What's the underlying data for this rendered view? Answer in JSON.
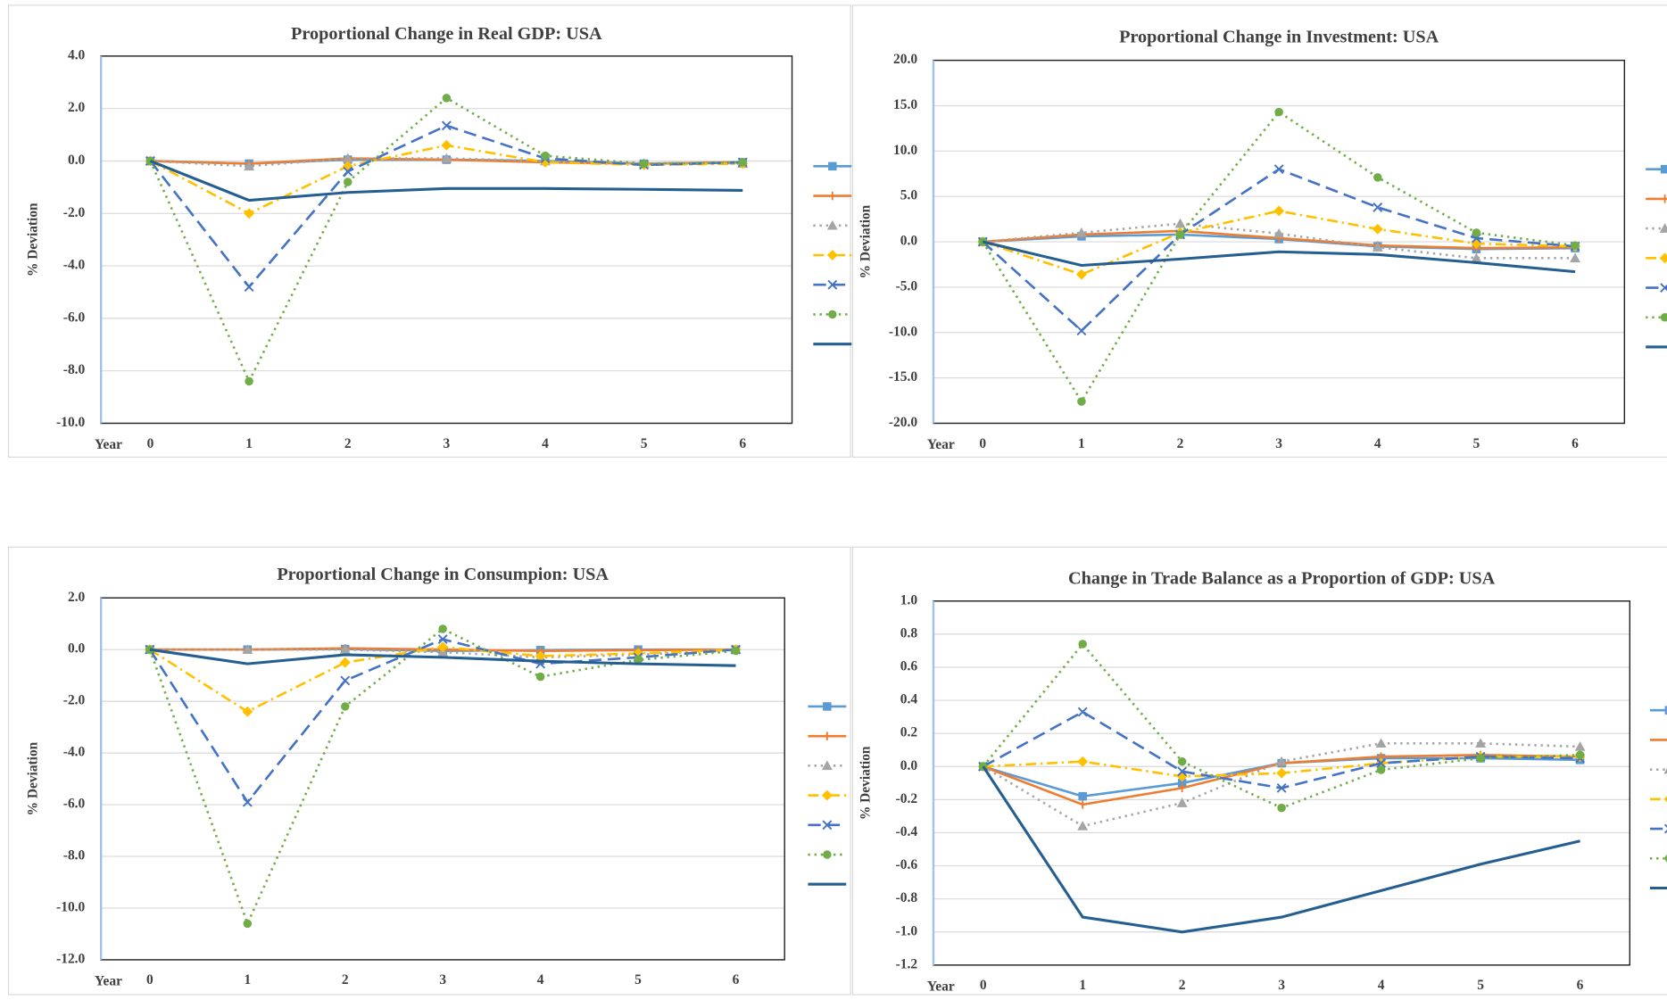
{
  "chart_data": [
    {
      "type": "line",
      "title": "Proportional Change in Real GDP: USA",
      "y_label": "% Deviation",
      "x_label": "Year",
      "x": [
        0,
        1,
        2,
        3,
        4,
        5,
        6
      ],
      "xlim": [
        -0.5,
        6.5
      ],
      "xticks": [
        0,
        1,
        2,
        3,
        4,
        5,
        6
      ],
      "ylim": [
        -10,
        4
      ],
      "yticks": [
        {
          "value": -10,
          "label": "-10.0"
        },
        {
          "value": -8,
          "label": "-8.0"
        },
        {
          "value": -6,
          "label": "-6.0"
        },
        {
          "value": -4,
          "label": "-4.0"
        },
        {
          "value": -2,
          "label": "-2.0"
        },
        {
          "value": 0,
          "label": "0.0"
        },
        {
          "value": 2,
          "label": "2.0"
        },
        {
          "value": 4,
          "label": "4.0"
        }
      ],
      "grid": true,
      "series": [
        {
          "color": "#5b9bd5",
          "dash": "solid",
          "marker": "square",
          "values": [
            0,
            -0.1,
            0.05,
            0.05,
            0,
            -0.1,
            -0.05
          ]
        },
        {
          "color": "#ed7d31",
          "dash": "solid",
          "marker": "plus",
          "values": [
            0,
            -0.1,
            0.1,
            0.05,
            -0.05,
            -0.1,
            -0.05
          ]
        },
        {
          "color": "#a5a5a5",
          "dash": "dot",
          "marker": "triangle",
          "values": [
            0,
            -0.2,
            0.1,
            0.1,
            0,
            -0.1,
            -0.1
          ]
        },
        {
          "color": "#ffc000",
          "dash": "dashdot",
          "marker": "diamond",
          "values": [
            0,
            -2.0,
            -0.2,
            0.6,
            -0.05,
            -0.15,
            -0.1
          ]
        },
        {
          "color": "#4472c4",
          "dash": "dash",
          "marker": "x",
          "values": [
            0,
            -4.8,
            -0.4,
            1.35,
            0.1,
            -0.15,
            -0.05
          ]
        },
        {
          "color": "#70ad47",
          "dash": "dot",
          "marker": "circle",
          "values": [
            0,
            -8.4,
            -0.8,
            2.4,
            0.2,
            -0.1,
            -0.05
          ]
        },
        {
          "color": "#255e91",
          "dash": "solid",
          "marker": "none",
          "values": [
            0,
            -1.5,
            -1.2,
            -1.05,
            -1.05,
            -1.08,
            -1.12
          ]
        }
      ]
    },
    {
      "type": "line",
      "title": "Proportional Change in Investment: USA",
      "y_label": "% Deviation",
      "x_label": "Year",
      "x": [
        0,
        1,
        2,
        3,
        4,
        5,
        6
      ],
      "xlim": [
        -0.5,
        6.5
      ],
      "xticks": [
        0,
        1,
        2,
        3,
        4,
        5,
        6
      ],
      "ylim": [
        -20,
        20
      ],
      "yticks": [
        {
          "value": -20,
          "label": "-20.0"
        },
        {
          "value": -15,
          "label": "-15.0"
        },
        {
          "value": -10,
          "label": "-10.0"
        },
        {
          "value": -5,
          "label": "-5.0"
        },
        {
          "value": 0,
          "label": "0.0"
        },
        {
          "value": 5,
          "label": "5.0"
        },
        {
          "value": 10,
          "label": "10.0"
        },
        {
          "value": 15,
          "label": "15.0"
        },
        {
          "value": 20,
          "label": "20.0"
        }
      ],
      "grid": true,
      "series": [
        {
          "color": "#5b9bd5",
          "dash": "solid",
          "marker": "square",
          "values": [
            0,
            0.6,
            0.8,
            0.3,
            -0.5,
            -0.8,
            -0.7
          ]
        },
        {
          "color": "#ed7d31",
          "dash": "solid",
          "marker": "plus",
          "values": [
            0,
            0.8,
            1.2,
            0.4,
            -0.4,
            -0.7,
            -0.6
          ]
        },
        {
          "color": "#a5a5a5",
          "dash": "dot",
          "marker": "triangle",
          "values": [
            0,
            1.0,
            2.0,
            0.9,
            -0.6,
            -1.8,
            -1.8
          ]
        },
        {
          "color": "#ffc000",
          "dash": "dashdot",
          "marker": "diamond",
          "values": [
            0,
            -3.6,
            1.0,
            3.4,
            1.4,
            -0.2,
            -0.5
          ]
        },
        {
          "color": "#4472c4",
          "dash": "dash",
          "marker": "x",
          "values": [
            0,
            -9.8,
            0.8,
            8.0,
            3.8,
            0.4,
            -0.5
          ]
        },
        {
          "color": "#70ad47",
          "dash": "dot",
          "marker": "circle",
          "values": [
            0,
            -17.6,
            0.8,
            14.3,
            7.1,
            1.0,
            -0.4
          ]
        },
        {
          "color": "#255e91",
          "dash": "solid",
          "marker": "none",
          "values": [
            0,
            -2.6,
            -1.9,
            -1.1,
            -1.4,
            -2.3,
            -3.3
          ]
        }
      ]
    },
    {
      "type": "line",
      "title": "Proportional Change in Consumpion: USA",
      "y_label": "% Deviation",
      "x_label": "Year",
      "x": [
        0,
        1,
        2,
        3,
        4,
        5,
        6
      ],
      "xlim": [
        -0.5,
        6.5
      ],
      "xticks": [
        0,
        1,
        2,
        3,
        4,
        5,
        6
      ],
      "ylim": [
        -12,
        2
      ],
      "yticks": [
        {
          "value": -12,
          "label": "-12.0"
        },
        {
          "value": -10,
          "label": "-10.0"
        },
        {
          "value": -8,
          "label": "-8.0"
        },
        {
          "value": -6,
          "label": "-6.0"
        },
        {
          "value": -4,
          "label": "-4.0"
        },
        {
          "value": -2,
          "label": "-2.0"
        },
        {
          "value": 0,
          "label": "0.0"
        },
        {
          "value": 2,
          "label": "2.0"
        }
      ],
      "grid": true,
      "series": [
        {
          "color": "#5b9bd5",
          "dash": "solid",
          "marker": "square",
          "values": [
            0,
            0,
            0.02,
            -0.05,
            -0.02,
            0,
            0
          ]
        },
        {
          "color": "#ed7d31",
          "dash": "solid",
          "marker": "plus",
          "values": [
            0,
            0,
            0.05,
            0,
            -0.05,
            -0.02,
            0
          ]
        },
        {
          "color": "#a5a5a5",
          "dash": "dot",
          "marker": "triangle",
          "values": [
            0,
            0,
            0,
            -0.1,
            -0.3,
            -0.2,
            0
          ]
        },
        {
          "color": "#ffc000",
          "dash": "dashdot",
          "marker": "diamond",
          "values": [
            0,
            -2.4,
            -0.5,
            0.1,
            -0.25,
            -0.15,
            0
          ]
        },
        {
          "color": "#4472c4",
          "dash": "dash",
          "marker": "x",
          "values": [
            0,
            -5.9,
            -1.2,
            0.4,
            -0.55,
            -0.3,
            0
          ]
        },
        {
          "color": "#70ad47",
          "dash": "dot",
          "marker": "circle",
          "values": [
            0,
            -10.6,
            -2.2,
            0.8,
            -1.05,
            -0.4,
            -0.05
          ]
        },
        {
          "color": "#255e91",
          "dash": "solid",
          "marker": "none",
          "values": [
            0,
            -0.55,
            -0.2,
            -0.3,
            -0.45,
            -0.55,
            -0.62
          ]
        }
      ]
    },
    {
      "type": "line",
      "title": "Change in Trade Balance as a Proportion of GDP: USA",
      "y_label": "% Deviation",
      "x_label": "Year",
      "x": [
        0,
        1,
        2,
        3,
        4,
        5,
        6
      ],
      "xlim": [
        -0.5,
        6.5
      ],
      "xticks": [
        0,
        1,
        2,
        3,
        4,
        5,
        6
      ],
      "ylim": [
        -1.2,
        1
      ],
      "yticks": [
        {
          "value": -1.2,
          "label": "-1.2"
        },
        {
          "value": -1,
          "label": "-1.0"
        },
        -0.8,
        -0.6,
        -0.4,
        -0.2,
        {
          "value": 0,
          "label": "0.0"
        },
        0.2,
        0.4,
        0.6,
        0.8,
        {
          "value": 1,
          "label": "1.0"
        }
      ],
      "grid": true,
      "series": [
        {
          "color": "#5b9bd5",
          "dash": "solid",
          "marker": "square",
          "values": [
            0,
            -0.18,
            -0.1,
            0.02,
            0.05,
            0.05,
            0.04
          ]
        },
        {
          "color": "#ed7d31",
          "dash": "solid",
          "marker": "plus",
          "values": [
            0,
            -0.23,
            -0.13,
            0.02,
            0.06,
            0.07,
            0.06
          ]
        },
        {
          "color": "#a5a5a5",
          "dash": "dot",
          "marker": "triangle",
          "values": [
            0,
            -0.36,
            -0.22,
            0.03,
            0.14,
            0.14,
            0.12
          ]
        },
        {
          "color": "#ffc000",
          "dash": "dashdot",
          "marker": "diamond",
          "values": [
            0,
            0.03,
            -0.06,
            -0.04,
            0.02,
            0.06,
            0.06
          ]
        },
        {
          "color": "#4472c4",
          "dash": "dash",
          "marker": "x",
          "values": [
            0,
            0.33,
            -0.03,
            -0.13,
            0.02,
            0.06,
            0.05
          ]
        },
        {
          "color": "#70ad47",
          "dash": "dot",
          "marker": "circle",
          "values": [
            0,
            0.74,
            0.03,
            -0.25,
            -0.02,
            0.05,
            0.07
          ]
        },
        {
          "color": "#255e91",
          "dash": "solid",
          "marker": "none",
          "values": [
            0,
            -0.91,
            -1.0,
            -0.91,
            -0.75,
            -0.59,
            -0.45
          ]
        }
      ]
    }
  ]
}
